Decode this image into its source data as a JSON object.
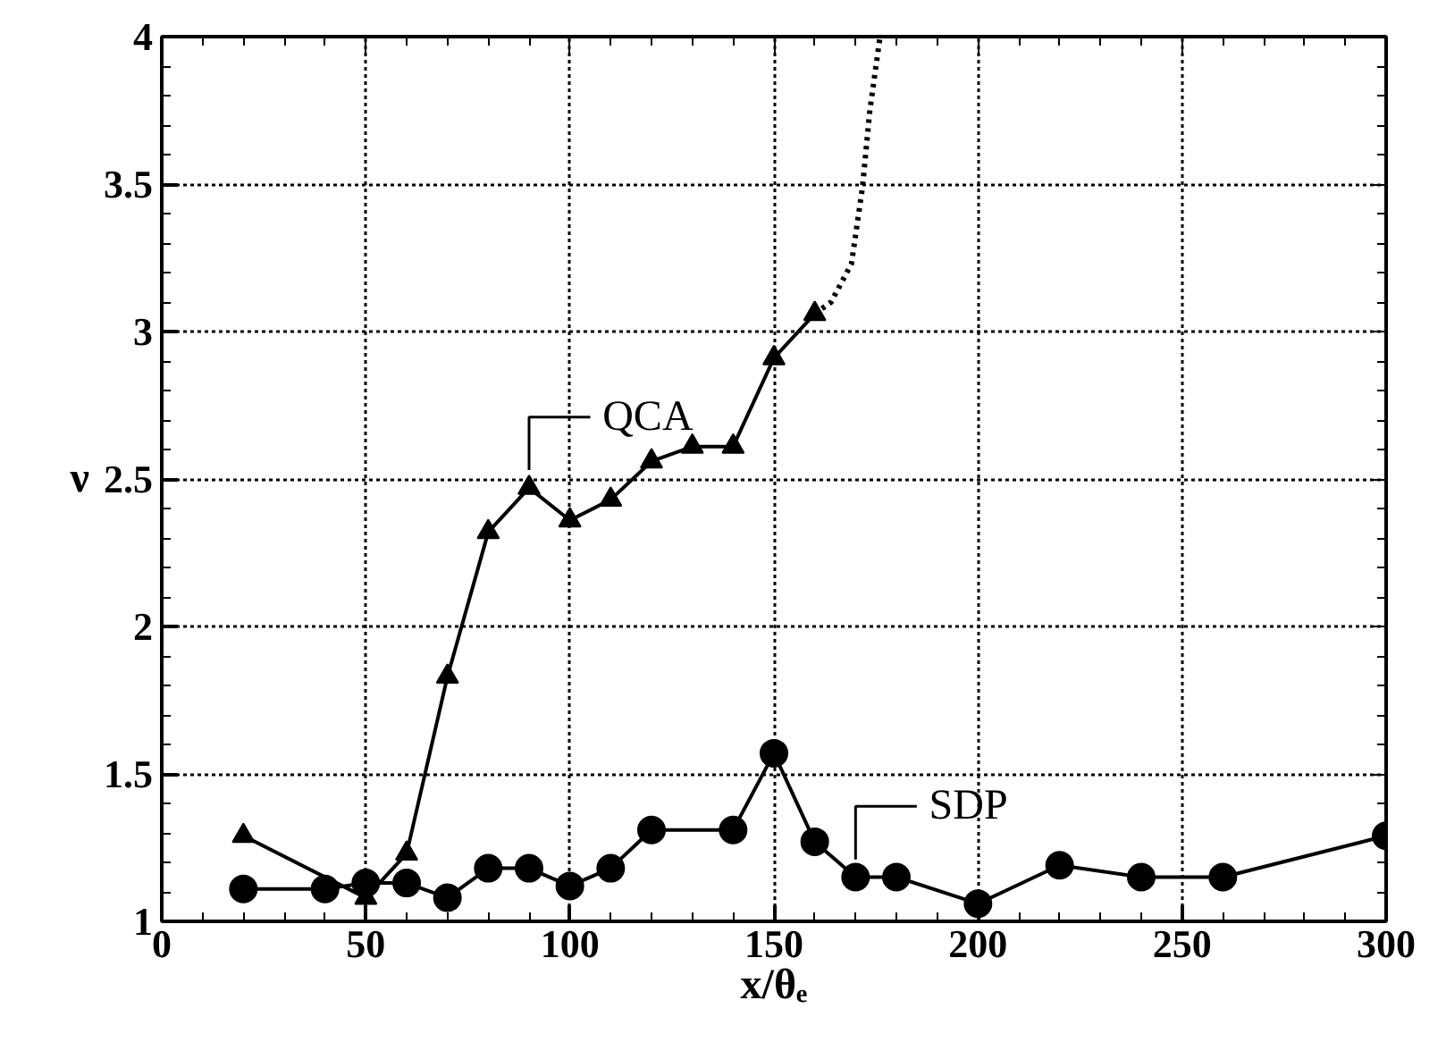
{
  "chart_data": {
    "type": "line",
    "xlabel": "x/θₑ",
    "ylabel": "ν",
    "xlim": [
      0,
      300
    ],
    "ylim": [
      1,
      4
    ],
    "xticks": [
      0,
      50,
      100,
      150,
      200,
      250,
      300
    ],
    "yticks": [
      1,
      1.5,
      2,
      2.5,
      3,
      3.5,
      4
    ],
    "grid": true,
    "annotations": [
      {
        "text": "QCA",
        "x": 90,
        "y": 2.47
      },
      {
        "text": "SDP",
        "x": 170,
        "y": 1.15
      }
    ],
    "series": [
      {
        "color": "#000000",
        "marker": "triangle",
        "line_style": "solid",
        "x": [
          20,
          50,
          60,
          70,
          80,
          90,
          100,
          110,
          120,
          130,
          140,
          150,
          160
        ],
        "values": [
          1.29,
          1.08,
          1.23,
          1.83,
          2.32,
          2.47,
          2.36,
          2.43,
          2.56,
          2.61,
          2.61,
          2.91,
          3.06
        ]
      },
      {
        "color": "#000000",
        "marker": "none",
        "line_style": "dotted",
        "x": [
          160,
          164,
          169,
          171.7,
          173.5,
          176
        ],
        "values": [
          3.06,
          3.1,
          3.23,
          3.49,
          3.75,
          4.0
        ]
      },
      {
        "color": "#000000",
        "marker": "circle",
        "line_style": "solid",
        "x": [
          20,
          40,
          50,
          60,
          70,
          80,
          90,
          100,
          110,
          120,
          140,
          150,
          160,
          170,
          180,
          200,
          220,
          240,
          260,
          300
        ],
        "values": [
          1.11,
          1.11,
          1.13,
          1.13,
          1.08,
          1.18,
          1.18,
          1.12,
          1.18,
          1.31,
          1.31,
          1.57,
          1.27,
          1.15,
          1.15,
          1.06,
          1.19,
          1.15,
          1.15,
          1.29
        ]
      }
    ]
  }
}
